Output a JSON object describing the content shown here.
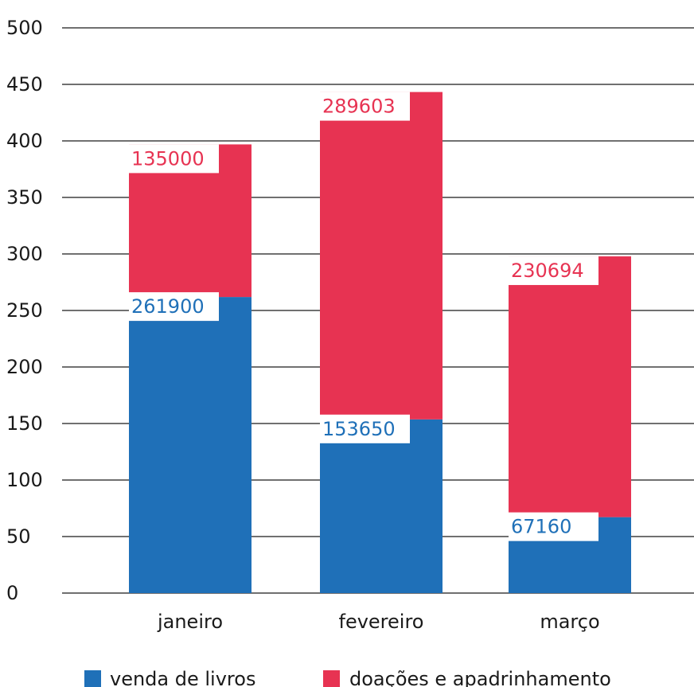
{
  "chart_data": {
    "type": "bar",
    "stacked": true,
    "categories": [
      "janeiro",
      "fevereiro",
      "março"
    ],
    "series": [
      {
        "name": "venda de livros",
        "color": "#1f70b8",
        "values": [
          261.9,
          153.65,
          67.16
        ],
        "labels": [
          "261900",
          "153650",
          "67160"
        ]
      },
      {
        "name": "doações e apadrinhamento",
        "color": "#e73352",
        "values": [
          135.0,
          289.603,
          230.694
        ],
        "labels": [
          "135000",
          "289603",
          "230694"
        ]
      }
    ],
    "yticks": [
      "0",
      "50",
      "100",
      "150",
      "200",
      "250",
      "300",
      "350",
      "400",
      "450",
      "500"
    ],
    "ylim": [
      0,
      500
    ],
    "grid": true,
    "legend_position": "bottom"
  }
}
